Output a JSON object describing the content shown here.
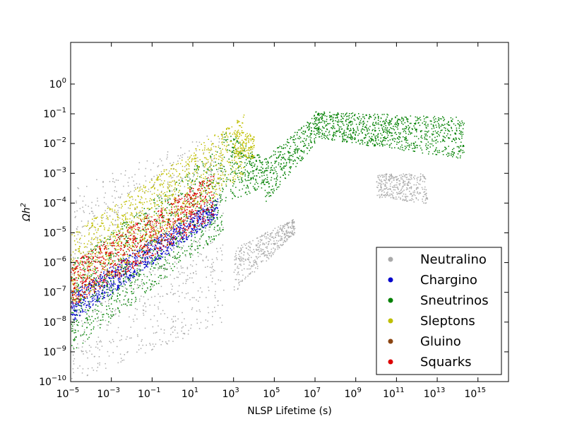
{
  "chart_data": {
    "type": "scatter",
    "title": "",
    "xlabel": "NLSP Lifetime (s)",
    "ylabel_base": "Ωh",
    "ylabel_exp": "2",
    "x_scale": "log",
    "y_scale": "log",
    "xlim_exp": [
      -5,
      16.5
    ],
    "ylim_exp": [
      -10,
      1.4
    ],
    "x_tick_exponents": [
      -5,
      -3,
      -1,
      1,
      3,
      5,
      7,
      9,
      11,
      13,
      15
    ],
    "y_tick_exponents": [
      -10,
      -9,
      -8,
      -7,
      -6,
      -5,
      -4,
      -3,
      -2,
      -1,
      0
    ],
    "tick_base": "10",
    "grid": false,
    "legend_position": "lower-right",
    "series": [
      {
        "name": "Neutralino",
        "color": "#aaaaaa",
        "regions": [
          {
            "x_exp_range": [
              -5,
              2.5
            ],
            "y_exp_at_start": [
              -10,
              -3.5
            ],
            "y_exp_at_end": [
              -8,
              -1.5
            ]
          },
          {
            "x_exp_range": [
              3,
              6.0
            ],
            "y_exp_at_start": [
              -7,
              -5.5
            ],
            "y_exp_at_end": [
              -5,
              -4.5
            ]
          },
          {
            "x_exp_range": [
              10,
              12.5
            ],
            "y_exp_at_start": [
              -3.8,
              -3.0
            ],
            "y_exp_at_end": [
              -4,
              -3.0
            ]
          }
        ]
      },
      {
        "name": "Chargino",
        "color": "#0000cc",
        "regions": [
          {
            "x_exp_range": [
              -5,
              2.2
            ],
            "y_exp_at_start": [
              -8,
              -7.0
            ],
            "y_exp_at_end": [
              -4.5,
              -3.8
            ]
          }
        ]
      },
      {
        "name": "Sneutrinos",
        "color": "#008000",
        "regions": [
          {
            "x_exp_range": [
              -5,
              2.5
            ],
            "y_exp_at_start": [
              -9,
              -6.0
            ],
            "y_exp_at_end": [
              -5,
              -2.0
            ]
          },
          {
            "x_exp_range": [
              2.5,
              4.5
            ],
            "y_exp_at_start": [
              -4,
              -1.5
            ],
            "y_exp_at_end": [
              -3.5,
              -2.5
            ]
          },
          {
            "x_exp_range": [
              4.5,
              7.0
            ],
            "y_exp_at_start": [
              -4,
              -2.5
            ],
            "y_exp_at_end": [
              -2,
              -1.0
            ]
          },
          {
            "x_exp_range": [
              7,
              14.3
            ],
            "y_exp_at_start": [
              -1.8,
              -0.9
            ],
            "y_exp_at_end": [
              -2.5,
              -1.1
            ]
          }
        ]
      },
      {
        "name": "Sleptons",
        "color": "#bfbf00",
        "regions": [
          {
            "x_exp_range": [
              -5,
              3.5
            ],
            "y_exp_at_start": [
              -7.5,
              -5.0
            ],
            "y_exp_at_end": [
              -3,
              -1.0
            ]
          },
          {
            "x_exp_range": [
              3,
              4.0
            ],
            "y_exp_at_start": [
              -2.5,
              -1.5
            ],
            "y_exp_at_end": [
              -2.5,
              -1.7
            ]
          }
        ]
      },
      {
        "name": "Gluino",
        "color": "#8b4513",
        "regions": []
      },
      {
        "name": "Squarks",
        "color": "#dd0000",
        "regions": [
          {
            "x_exp_range": [
              -5,
              2.0
            ],
            "y_exp_at_start": [
              -7.5,
              -6.0
            ],
            "y_exp_at_end": [
              -4.5,
              -3.0
            ]
          }
        ]
      }
    ]
  }
}
